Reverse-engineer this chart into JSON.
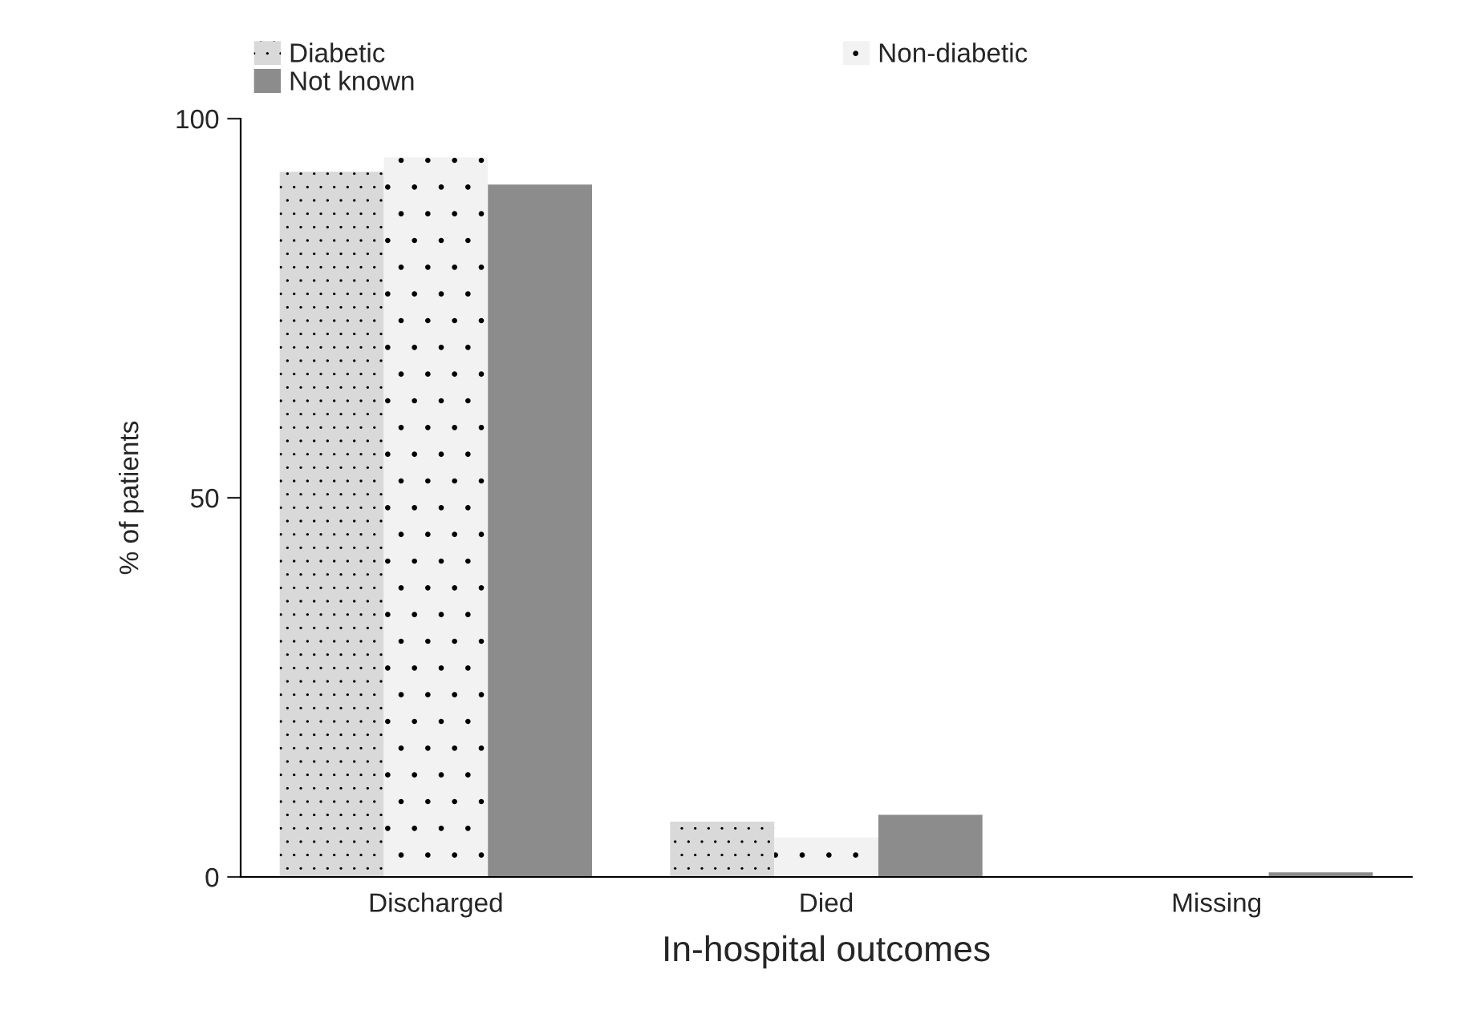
{
  "chart_data": {
    "type": "bar",
    "xlabel": "In-hospital outcomes",
    "ylabel": "% of patients",
    "categories": [
      "Discharged",
      "Died",
      "Missing"
    ],
    "series": [
      {
        "name": "Diabetic",
        "color": "#d9d9d9",
        "values": [
          93.0,
          7.3,
          0.1
        ]
      },
      {
        "name": "Non-diabetic",
        "color": "#f2f2f2",
        "values": [
          94.9,
          5.2,
          0.2
        ]
      },
      {
        "name": "Not known",
        "color": "#8c8c8c",
        "values": [
          91.3,
          8.2,
          0.6
        ]
      }
    ],
    "ylim": [
      0,
      100
    ],
    "yticks": [
      0,
      50,
      100
    ],
    "grid": false,
    "legend": "top"
  }
}
